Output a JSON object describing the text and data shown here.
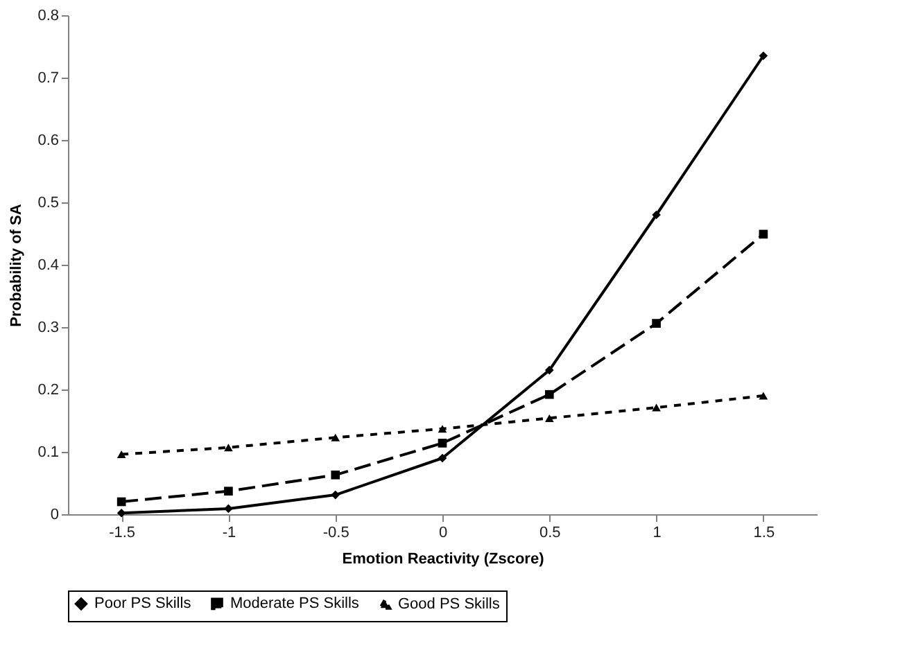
{
  "chart_data": {
    "type": "line",
    "xlabel": "Emotion Reactivity (Zscore)",
    "ylabel": "Probability of SA",
    "categories": [
      "-1.5",
      "-1",
      "-0.5",
      "0",
      "0.5",
      "1",
      "1.5"
    ],
    "series": [
      {
        "name": "Poor PS Skills",
        "color": "#000000",
        "marker": "diamond",
        "line_style": "solid",
        "values": [
          0.002,
          0.009,
          0.031,
          0.09,
          0.231,
          0.48,
          0.735
        ]
      },
      {
        "name": "Moderate PS Skills",
        "color": "#000000",
        "marker": "square",
        "line_style": "dashed",
        "values": [
          0.02,
          0.037,
          0.063,
          0.114,
          0.192,
          0.306,
          0.449
        ]
      },
      {
        "name": "Good PS Skills",
        "color": "#000000",
        "marker": "triangle",
        "line_style": "dotted",
        "values": [
          0.096,
          0.107,
          0.123,
          0.137,
          0.154,
          0.171,
          0.19
        ]
      }
    ],
    "ylim": [
      0,
      0.8
    ],
    "yticks": [
      0,
      0.1,
      0.2,
      0.3,
      0.4,
      0.5,
      0.6,
      0.7,
      0.8
    ],
    "grid": false,
    "legend": "bottom"
  }
}
